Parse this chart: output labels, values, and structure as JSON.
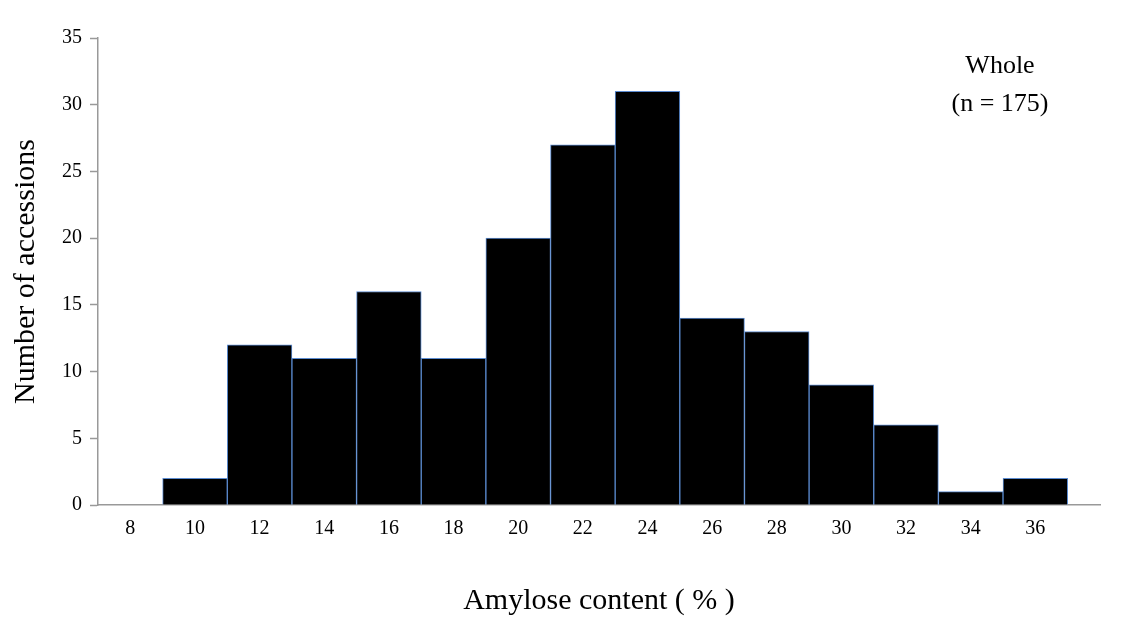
{
  "chart_data": {
    "type": "histogram",
    "xlabel": "Amylose content ( % )",
    "ylabel": "Number of accessions",
    "bins": [
      9,
      11,
      13,
      15,
      17,
      19,
      21,
      23,
      25,
      27,
      29,
      31,
      33,
      35,
      37
    ],
    "values": [
      2,
      12,
      11,
      16,
      11,
      20,
      27,
      31,
      14,
      13,
      9,
      6,
      1,
      2
    ],
    "color": "#000000",
    "xlim": [
      7,
      38
    ],
    "xticks": [
      8,
      10,
      12,
      14,
      16,
      18,
      20,
      22,
      24,
      26,
      28,
      30,
      32,
      34,
      36
    ],
    "ylim": [
      0,
      35
    ],
    "yticks": [
      0,
      5,
      10,
      15,
      20,
      25,
      30,
      35
    ],
    "grid": false,
    "legend": false,
    "annotations": [
      "Whole",
      "(n = 175)"
    ]
  }
}
